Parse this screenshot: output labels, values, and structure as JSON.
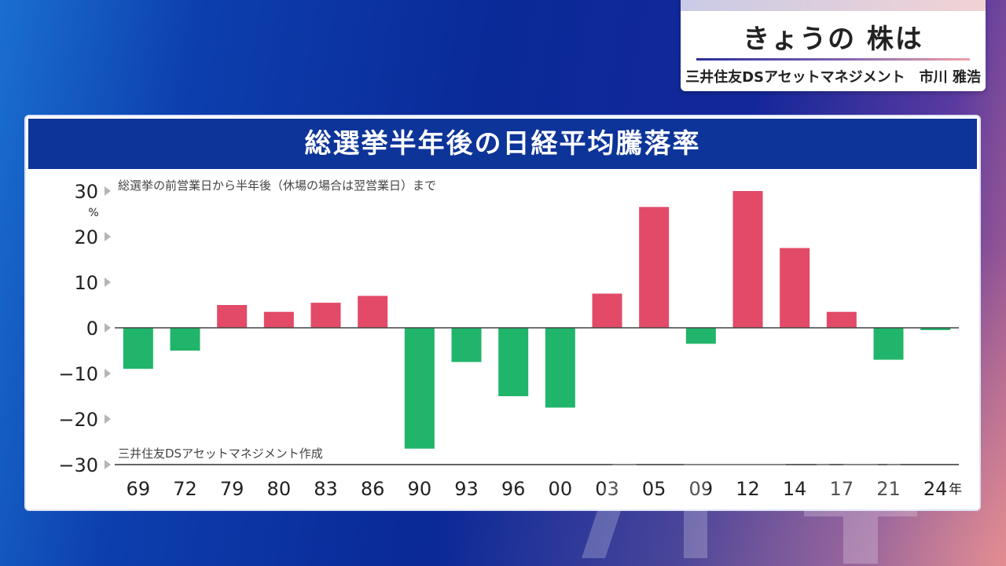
{
  "caption": {
    "title": "きょうの 株は",
    "subtitle": "三井住友DSアセットマネジメント　市川 雅浩"
  },
  "panel": {
    "title": "総選挙半年後の日経平均騰落率",
    "note_top": "総選挙の前営業日から半年後（休場の場合は翌営業日）まで",
    "note_bottom": "三井住友DSアセットマネジメント作成"
  },
  "colors": {
    "positive": "#e24a68",
    "negative": "#20b56a",
    "header_bg": "#0d3498"
  },
  "chart_data": {
    "type": "bar",
    "title": "総選挙半年後の日経平均騰落率",
    "ylabel": "%",
    "xlabel": "",
    "x_unit_label": "年",
    "ylim": [
      -30,
      30
    ],
    "yticks": [
      30,
      20,
      10,
      0,
      -10,
      -20,
      -30
    ],
    "ytick_labels": [
      "30",
      "20",
      "10",
      "0",
      "−10",
      "−20",
      "−30"
    ],
    "categories": [
      "69",
      "72",
      "79",
      "80",
      "83",
      "86",
      "90",
      "93",
      "96",
      "00",
      "03",
      "05",
      "09",
      "12",
      "14",
      "17",
      "21",
      "24"
    ],
    "values": [
      -9.0,
      -5.0,
      5.0,
      3.5,
      5.5,
      7.0,
      -26.5,
      -7.5,
      -15.0,
      -17.5,
      7.5,
      26.5,
      -3.5,
      30.0,
      17.5,
      3.5,
      -7.0,
      -0.5
    ],
    "grid": false,
    "legend": "none"
  }
}
